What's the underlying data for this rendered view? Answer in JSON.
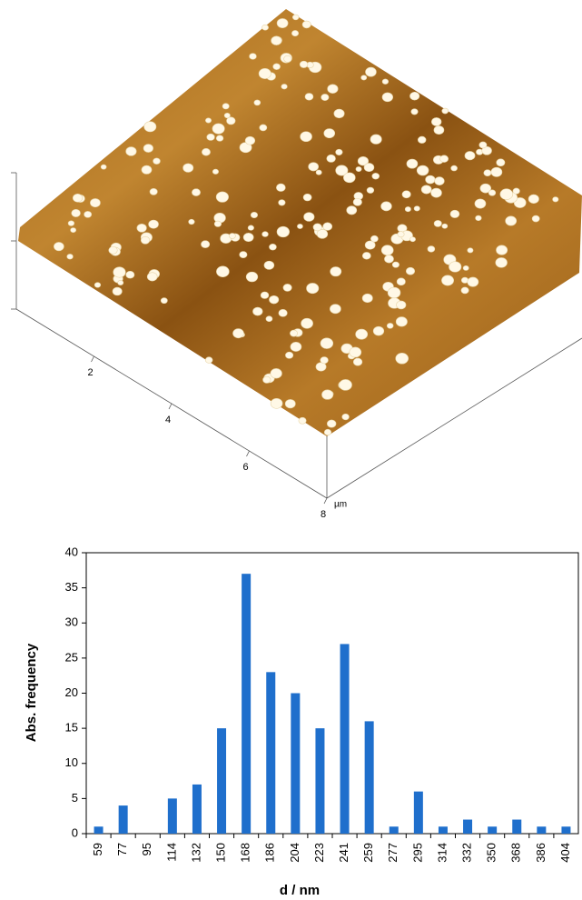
{
  "chart_data": [
    {
      "type": "surface",
      "xlim": [
        0,
        8
      ],
      "xticks": [
        2,
        4,
        6,
        8
      ],
      "unit": "µm"
    },
    {
      "type": "bar",
      "xlabel": "d / nm",
      "ylabel": "Abs. frequency",
      "categories": [
        "59",
        "77",
        "95",
        "114",
        "132",
        "150",
        "168",
        "186",
        "204",
        "223",
        "241",
        "259",
        "277",
        "295",
        "314",
        "332",
        "350",
        "368",
        "386",
        "404"
      ],
      "values": [
        1,
        4,
        0,
        5,
        7,
        15,
        37,
        23,
        20,
        15,
        27,
        16,
        1,
        6,
        1,
        2,
        1,
        2,
        1,
        1
      ],
      "color": "#1f6fcc",
      "ylim": [
        0,
        40
      ],
      "yticks": [
        0,
        5,
        10,
        15,
        20,
        25,
        30,
        35,
        40
      ]
    }
  ]
}
